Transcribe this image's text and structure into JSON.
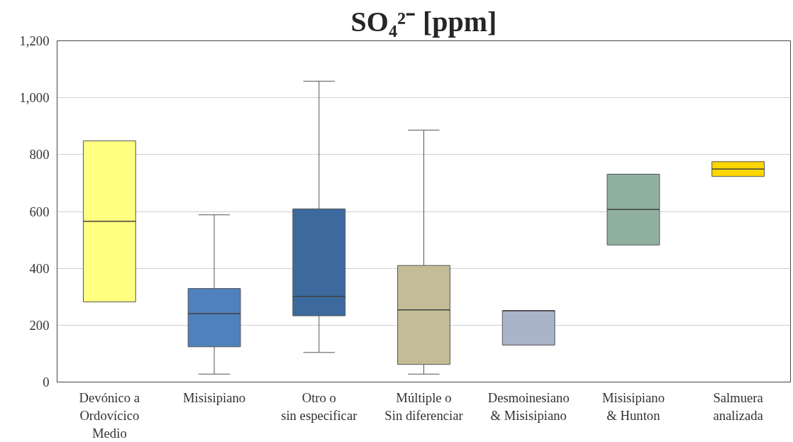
{
  "chart_data": {
    "type": "box",
    "title": "SO₄²⁻ [ppm]",
    "categories": [
      "Devónico a\nOrdovícico\nMedio",
      "Misisipiano",
      "Otro o\nsin especificar",
      "Múltiple o\nSin diferenciar",
      "Desmoinesiano\n& Misisipiano",
      "Misisipiano\n& Hunton",
      "Salmuera\nanalizada"
    ],
    "colors": [
      "#ffff80",
      "#4f81bd",
      "#3d6a9e",
      "#c4bc96",
      "#a9b4c8",
      "#8fb09e",
      "#ffd700"
    ],
    "boxes": [
      {
        "low": 282,
        "q1": 282,
        "median": 565,
        "q3": 848,
        "high": 848
      },
      {
        "low": 28,
        "q1": 124,
        "median": 241,
        "q3": 329,
        "high": 588
      },
      {
        "low": 104,
        "q1": 233,
        "median": 301,
        "q3": 609,
        "high": 1058
      },
      {
        "low": 28,
        "q1": 62,
        "median": 254,
        "q3": 410,
        "high": 886
      },
      {
        "low": 130,
        "q1": 130,
        "median": 251,
        "q3": 251,
        "high": 251
      },
      {
        "low": 482,
        "q1": 482,
        "median": 607,
        "q3": 731,
        "high": 731
      },
      {
        "low": 723,
        "q1": 723,
        "median": 749,
        "q3": 775,
        "high": 775
      }
    ],
    "ylim": [
      0,
      1200
    ],
    "yticks": [
      {
        "value": 0,
        "label": "0"
      },
      {
        "value": 200,
        "label": "200"
      },
      {
        "value": 400,
        "label": "400"
      },
      {
        "value": 600,
        "label": "600"
      },
      {
        "value": 800,
        "label": "800"
      },
      {
        "value": 1000,
        "label": "1,000"
      },
      {
        "value": 1200,
        "label": "1,200"
      }
    ],
    "grid": "y"
  }
}
